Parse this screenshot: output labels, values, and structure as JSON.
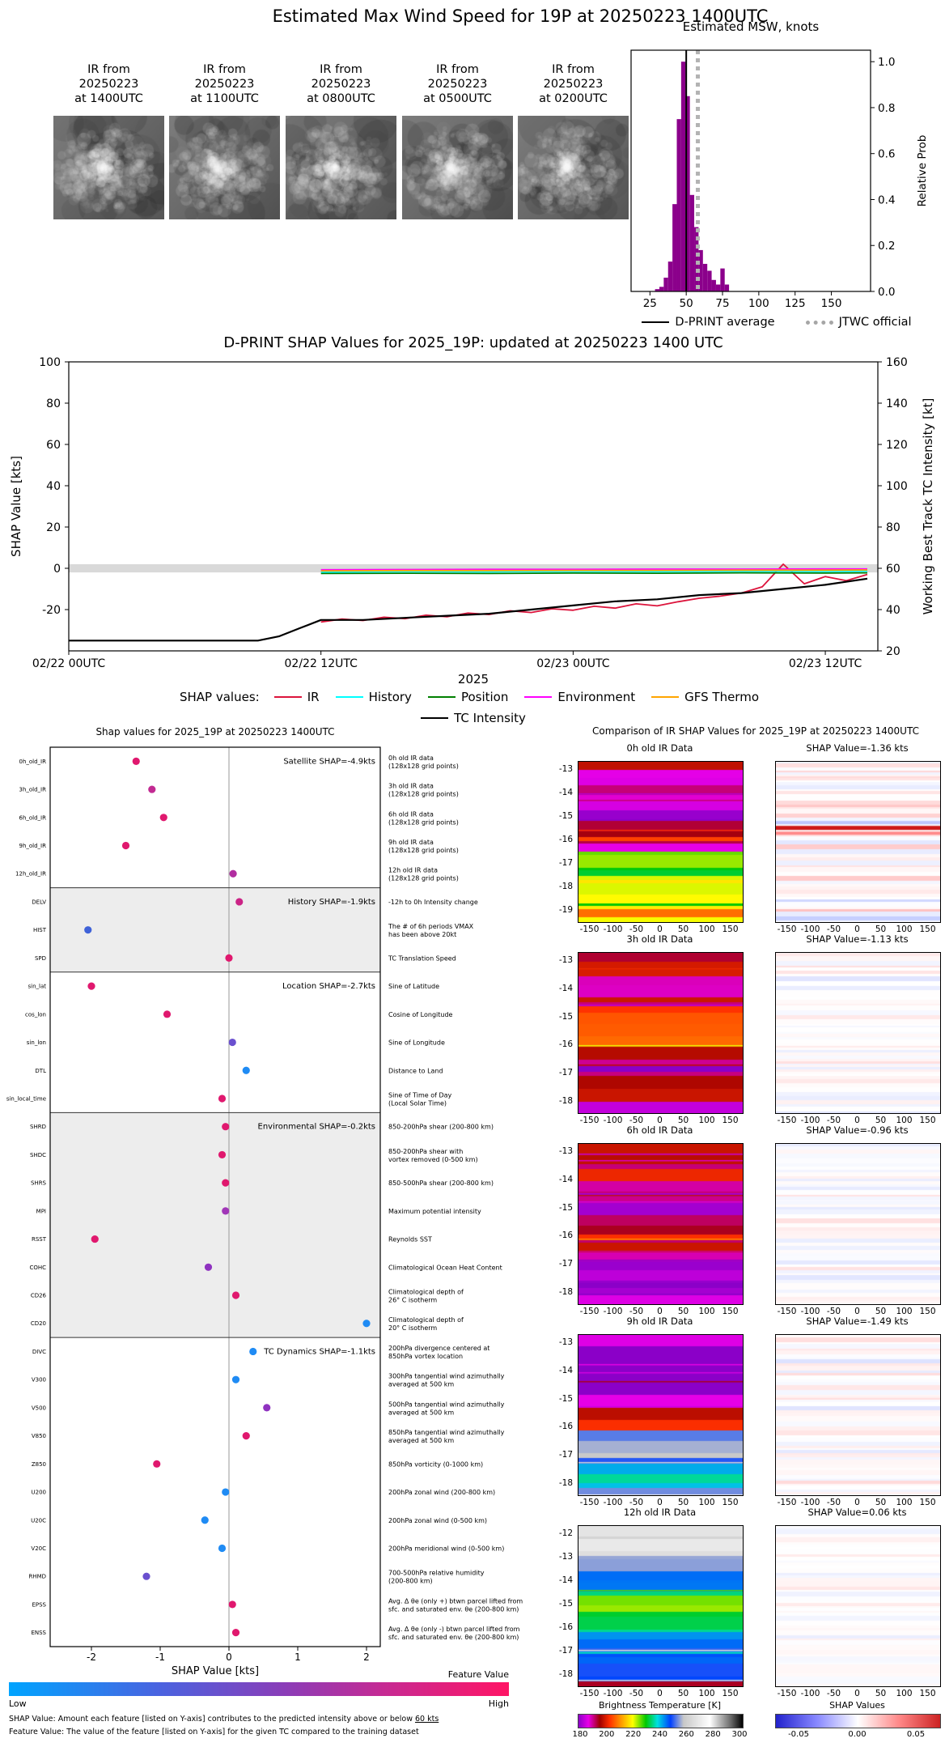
{
  "figure_title": "Estimated Max Wind Speed for 19P at 20250223 1400UTC",
  "ir_thumbnails": [
    {
      "label": "IR from\n20250223\nat 1400UTC"
    },
    {
      "label": "IR from\n20250223\nat 1100UTC"
    },
    {
      "label": "IR from\n20250223\nat 0800UTC"
    },
    {
      "label": "IR from\n20250223\nat 0500UTC"
    },
    {
      "label": "IR from\n20250223\nat 0200UTC"
    }
  ],
  "chart_data": [
    {
      "id": "msw_histogram",
      "type": "bar",
      "title": "Estimated MSW, knots",
      "ylabel": "Relative Prob",
      "xlim": [
        12,
        177
      ],
      "ylim": [
        0,
        1.05
      ],
      "xticks": [
        25,
        50,
        75,
        100,
        125,
        150
      ],
      "yticks": [
        0,
        0.2,
        0.4,
        0.6,
        0.8,
        1.0
      ],
      "bar_color": "#8B008B",
      "bar_width_knots": 3,
      "categories": [
        30,
        33,
        36,
        39,
        42,
        45,
        48,
        51,
        54,
        57,
        60,
        63,
        66,
        69,
        72,
        75,
        78
      ],
      "values": [
        0.01,
        0.02,
        0.06,
        0.13,
        0.38,
        0.75,
        1.0,
        0.85,
        0.42,
        0.28,
        0.18,
        0.12,
        0.09,
        0.05,
        0.03,
        0.1,
        0.03
      ],
      "dprint_average": 50,
      "jtwc_official": 58,
      "legend": [
        {
          "label": "D-PRINT average",
          "color": "#000000",
          "style": "solid"
        },
        {
          "label": "JTWC official",
          "color": "#a6a6a6",
          "style": "dotted"
        }
      ]
    },
    {
      "id": "shap_timeseries",
      "type": "line",
      "title": "D-PRINT SHAP Values for 2025_19P: updated at 20250223 1400 UTC",
      "ylabel_left": "SHAP Value [kts]",
      "ylabel_right": "Working Best Track TC Intensity [kt]",
      "xlabel": "2025",
      "xlim_hours": [
        0,
        38.5
      ],
      "ylim_left": [
        -40,
        100
      ],
      "yticks_left": [
        -20,
        0,
        20,
        40,
        60,
        80,
        100
      ],
      "ylim_right": [
        20,
        160
      ],
      "yticks_right": [
        20,
        40,
        60,
        80,
        100,
        120,
        140,
        160
      ],
      "xticks": [
        {
          "hour": 0,
          "label": "02/22 00UTC"
        },
        {
          "hour": 12,
          "label": "02/22 12UTC"
        },
        {
          "hour": 24,
          "label": "02/23 00UTC"
        },
        {
          "hour": 36,
          "label": "02/23 12UTC"
        }
      ],
      "zero_band": {
        "from": -2,
        "to": 2,
        "color": "#d9d9d9"
      },
      "legend_title": "SHAP values:",
      "series": [
        {
          "name": "IR",
          "color": "#dc143c",
          "axis": "left",
          "x": [
            12,
            13,
            14,
            15,
            16,
            17,
            18,
            19,
            20,
            21,
            22,
            23,
            24,
            25,
            26,
            27,
            28,
            29,
            30,
            31,
            32,
            33,
            34,
            35,
            36,
            37,
            38
          ],
          "y": [
            -26,
            -24.6,
            -25.3,
            -23.7,
            -24.4,
            -22.7,
            -23.5,
            -21.7,
            -22.4,
            -20.6,
            -21.4,
            -19.6,
            -20.3,
            -18.4,
            -19.3,
            -17.2,
            -18.2,
            -16.2,
            -14.5,
            -13.5,
            -12,
            -9,
            2,
            -7.5,
            -4,
            -6,
            -3
          ]
        },
        {
          "name": "History",
          "color": "#00ffff",
          "axis": "left",
          "x": [
            12,
            16,
            20,
            24,
            28,
            32,
            36,
            38
          ],
          "y": [
            -1.8,
            -1.6,
            -1.7,
            -1.5,
            -1.6,
            -1.4,
            -1.5,
            -1.3
          ]
        },
        {
          "name": "Position",
          "color": "#008000",
          "axis": "left",
          "x": [
            12,
            16,
            20,
            24,
            28,
            32,
            36,
            38
          ],
          "y": [
            -2.5,
            -2.4,
            -2.5,
            -2.3,
            -2.4,
            -2.2,
            -2.3,
            -2.2
          ]
        },
        {
          "name": "Environment",
          "color": "#ff00ff",
          "axis": "left",
          "x": [
            12,
            16,
            20,
            24,
            28,
            32,
            36,
            38
          ],
          "y": [
            -0.7,
            -0.6,
            -0.5,
            -0.5,
            -0.4,
            -0.4,
            -0.3,
            -0.3
          ]
        },
        {
          "name": "GFS Thermo",
          "color": "#ffa500",
          "axis": "left",
          "x": [
            12,
            16,
            20,
            24,
            28,
            32,
            36,
            38
          ],
          "y": [
            -1.2,
            -1.1,
            -1.1,
            -1.0,
            -1.0,
            -0.9,
            -0.9,
            -0.8
          ]
        },
        {
          "name": "TC Intensity",
          "color": "#000000",
          "axis": "right",
          "x": [
            0,
            2,
            4,
            6,
            8,
            9,
            10,
            11,
            12,
            14,
            16,
            18,
            20,
            22,
            24,
            26,
            28,
            30,
            32,
            34,
            36,
            38
          ],
          "y": [
            25,
            25,
            25,
            25,
            25,
            25,
            27,
            31,
            35,
            35,
            36,
            37,
            38,
            40,
            42,
            44,
            45,
            47,
            48,
            50,
            52,
            55
          ]
        }
      ]
    },
    {
      "id": "shap_feature_plot",
      "type": "scatter",
      "title": "Shap values for 2025_19P at 20250223 1400UTC",
      "xlabel": "SHAP Value [kts]",
      "xlim": [
        -2.6,
        2.2
      ],
      "xticks": [
        -2,
        -1,
        0,
        1,
        2
      ],
      "groups": [
        {
          "label": "Satellite SHAP=-4.9kts",
          "shade": false,
          "features": [
            {
              "name": "0h_old_IR",
              "shap": -1.35,
              "color": "#e0186e",
              "desc": [
                "0h old IR data",
                "(128x128 grid points)"
              ]
            },
            {
              "name": "3h_old_IR",
              "shap": -1.12,
              "color": "#c22a92",
              "desc": [
                "3h old IR data",
                "(128x128 grid points)"
              ]
            },
            {
              "name": "6h_old_IR",
              "shap": -0.95,
              "color": "#e0186e",
              "desc": [
                "6h old IR data",
                "(128x128 grid points)"
              ]
            },
            {
              "name": "9h_old_IR",
              "shap": -1.5,
              "color": "#e0186e",
              "desc": [
                "9h old IR data",
                "(128x128 grid points)"
              ]
            },
            {
              "name": "12h_old_IR",
              "shap": 0.06,
              "color": "#b12da0",
              "desc": [
                "12h old IR data",
                "(128x128 grid points)"
              ]
            }
          ]
        },
        {
          "label": "History SHAP=-1.9kts",
          "shade": true,
          "features": [
            {
              "name": "DELV",
              "shap": 0.15,
              "color": "#cb2386",
              "desc": [
                "-12h to 0h Intensity change"
              ]
            },
            {
              "name": "HIST",
              "shap": -2.05,
              "color": "#3f62d8",
              "desc": [
                "The # of 6h periods VMAX",
                "has been above 20kt"
              ]
            },
            {
              "name": "SPD",
              "shap": 0.0,
              "color": "#e0186e",
              "desc": [
                "TC Translation Speed"
              ]
            }
          ]
        },
        {
          "label": "Location SHAP=-2.7kts",
          "shade": false,
          "features": [
            {
              "name": "sin_lat",
              "shap": -2.0,
              "color": "#e0186e",
              "desc": [
                "Sine of Latitude"
              ]
            },
            {
              "name": "cos_lon",
              "shap": -0.9,
              "color": "#e0186e",
              "desc": [
                "Cosine of Longitude"
              ]
            },
            {
              "name": "sin_lon",
              "shap": 0.05,
              "color": "#6a50cf",
              "desc": [
                "Sine of Longitude"
              ]
            },
            {
              "name": "DTL",
              "shap": 0.25,
              "color": "#1f8bf4",
              "desc": [
                "Distance to Land"
              ]
            },
            {
              "name": "sin_local_time",
              "shap": -0.1,
              "color": "#e0186e",
              "desc": [
                "Sine of Time of Day",
                "(Local Solar Time)"
              ]
            }
          ]
        },
        {
          "label": "Environmental SHAP=-0.2kts",
          "shade": true,
          "features": [
            {
              "name": "SHRD",
              "shap": -0.05,
              "color": "#e0186e",
              "desc": [
                "850-200hPa shear (200-800 km)"
              ]
            },
            {
              "name": "SHDC",
              "shap": -0.1,
              "color": "#e0186e",
              "desc": [
                "850-200hPa shear with",
                "vortex removed (0-500 km)"
              ]
            },
            {
              "name": "SHRS",
              "shap": -0.05,
              "color": "#e0186e",
              "desc": [
                "850-500hPa shear (200-800 km)"
              ]
            },
            {
              "name": "MPI",
              "shap": -0.05,
              "color": "#a136b8",
              "desc": [
                "Maximum potential intensity"
              ]
            },
            {
              "name": "RSST",
              "shap": -1.95,
              "color": "#e0186e",
              "desc": [
                "Reynolds SST"
              ]
            },
            {
              "name": "COHC",
              "shap": -0.3,
              "color": "#8f32c0",
              "desc": [
                "Climatological Ocean Heat Content"
              ]
            },
            {
              "name": "CD26",
              "shap": 0.1,
              "color": "#e0186e",
              "desc": [
                "Climatological depth of",
                "26° C isotherm"
              ]
            },
            {
              "name": "CD20",
              "shap": 2.0,
              "color": "#1f8bf4",
              "desc": [
                "Climatological depth of",
                "20° C isotherm"
              ]
            }
          ]
        },
        {
          "label": "TC Dynamics SHAP=-1.1kts",
          "shade": false,
          "features": [
            {
              "name": "DIVC",
              "shap": 0.35,
              "color": "#1f8bf4",
              "desc": [
                "200hPa divergence centered at",
                "850hPa vortex location"
              ]
            },
            {
              "name": "V300",
              "shap": 0.1,
              "color": "#1f8bf4",
              "desc": [
                "300hPa tangential wind azimuthally",
                "averaged at 500 km"
              ]
            },
            {
              "name": "V500",
              "shap": 0.55,
              "color": "#8f32c0",
              "desc": [
                "500hPa tangential wind azimuthally",
                "averaged at 500 km"
              ]
            },
            {
              "name": "V850",
              "shap": 0.25,
              "color": "#e0186e",
              "desc": [
                "850hPa tangential wind azimuthally",
                "averaged at 500 km"
              ]
            },
            {
              "name": "Z850",
              "shap": -1.05,
              "color": "#e0186e",
              "desc": [
                "850hPa vorticity (0-1000 km)"
              ]
            },
            {
              "name": "U200",
              "shap": -0.05,
              "color": "#1f8bf4",
              "desc": [
                "200hPa zonal wind (200-800 km)"
              ]
            },
            {
              "name": "U20C",
              "shap": -0.35,
              "color": "#1f8bf4",
              "desc": [
                "200hPa zonal wind (0-500 km)"
              ]
            },
            {
              "name": "V20C",
              "shap": -0.1,
              "color": "#1f8bf4",
              "desc": [
                "200hPa meridional wind (0-500 km)"
              ]
            },
            {
              "name": "RHMD",
              "shap": -1.2,
              "color": "#6a50cf",
              "desc": [
                "700-500hPa relative humidity",
                "(200-800 km)"
              ]
            },
            {
              "name": "EPSS",
              "shap": 0.05,
              "color": "#e0186e",
              "desc": [
                "Avg. Δ θe (only +) btwn parcel lifted from",
                "sfc. and saturated env. θe (200-800 km)"
              ]
            },
            {
              "name": "ENSS",
              "shap": 0.1,
              "color": "#e0186e",
              "desc": [
                "Avg. Δ θe (only -) btwn parcel lifted from",
                "sfc. and saturated env. θe (200-800 km)"
              ]
            }
          ]
        }
      ],
      "colorbar": {
        "title": "Feature Value",
        "low": "Low",
        "high": "High"
      },
      "footnotes": [
        {
          "text": "SHAP Value: Amount each feature [listed on Y-axis] contributes to the predicted intensity above or below ",
          "underline": "60 kts"
        },
        {
          "text": "Feature Value: The value of the feature [listed on Y-axis] for the given TC compared to the training dataset",
          "underline": ""
        }
      ]
    },
    {
      "id": "ir_shap_comparison",
      "type": "heatmap",
      "title": "Comparison of IR SHAP Values for 2025_19P at 20250223 1400UTC",
      "xticks": [
        -150,
        -100,
        -50,
        0,
        50,
        100,
        150
      ],
      "rows": [
        {
          "ir_title": "0h old IR Data",
          "shap_title": "SHAP Value=-1.36 kts",
          "yticks": [
            -13,
            -14,
            -15,
            -16,
            -17,
            -18,
            -19
          ]
        },
        {
          "ir_title": "3h old IR Data",
          "shap_title": "SHAP Value=-1.13 kts",
          "yticks": [
            -13,
            -14,
            -15,
            -16,
            -17,
            -18
          ]
        },
        {
          "ir_title": "6h old IR Data",
          "shap_title": "SHAP Value=-0.96 kts",
          "yticks": [
            -13,
            -14,
            -15,
            -16,
            -17,
            -18
          ]
        },
        {
          "ir_title": "9h old IR Data",
          "shap_title": "SHAP Value=-1.49 kts",
          "yticks": [
            -13,
            -14,
            -15,
            -16,
            -17,
            -18
          ]
        },
        {
          "ir_title": "12h old IR Data",
          "shap_title": "SHAP Value=0.06 kts",
          "yticks": [
            -12,
            -13,
            -14,
            -15,
            -16,
            -17,
            -18
          ]
        }
      ],
      "colorbar_bt": {
        "title": "Brightness Temperature [K]",
        "ticks": [
          180,
          200,
          220,
          240,
          260,
          280,
          300
        ]
      },
      "colorbar_shap": {
        "title": "SHAP Values",
        "ticks": [
          "-0.05",
          "0.00",
          "0.05"
        ]
      }
    }
  ]
}
